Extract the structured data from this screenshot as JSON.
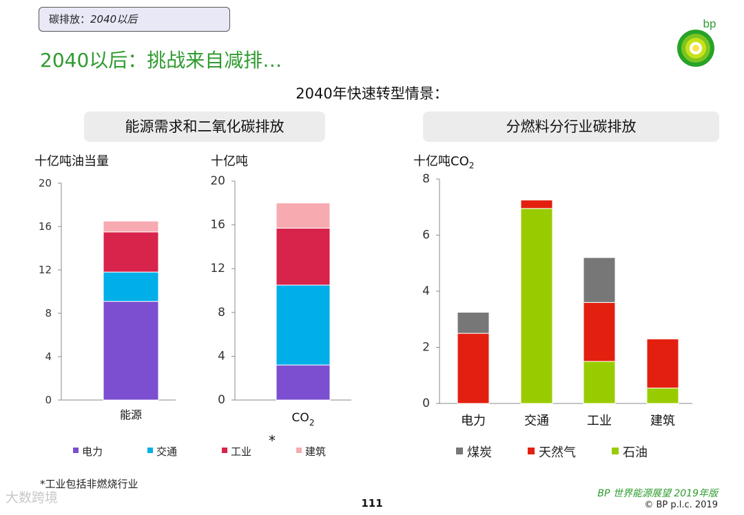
{
  "header": {
    "tag_prefix": "碳排放：",
    "tag_year": "2040以后",
    "headline": "2040以后：挑战来自减排…",
    "logo_text": "bp"
  },
  "scenario_title": "2040年快速转型情景：",
  "panels": {
    "left_title": "能源需求和二氧化碳排放",
    "right_title": "分燃料分行业碳排放"
  },
  "units": {
    "energy": "十亿吨油当量",
    "co2": "十亿吨",
    "sector_prefix": "十亿吨CO",
    "sector_sub": "2"
  },
  "colors": {
    "power": "#7b4fcf",
    "transport": "#00aee8",
    "industry": "#d8234a",
    "buildings": "#f7aab0",
    "coal": "#777777",
    "gas": "#e3200f",
    "oil": "#99cc00"
  },
  "chart_data": [
    {
      "type": "bar",
      "stacked": true,
      "categories": [
        "能源"
      ],
      "series": [
        {
          "name": "电力",
          "values": [
            9.1
          ]
        },
        {
          "name": "交通",
          "values": [
            2.7
          ]
        },
        {
          "name": "工业",
          "values": [
            3.7
          ]
        },
        {
          "name": "建筑",
          "values": [
            1.0
          ]
        }
      ],
      "ylim": [
        0,
        20
      ],
      "yticks": [
        0,
        4,
        8,
        12,
        16,
        20
      ],
      "ylabel": "十亿吨油当量"
    },
    {
      "type": "bar",
      "stacked": true,
      "categories": [
        "CO₂"
      ],
      "series": [
        {
          "name": "电力",
          "values": [
            3.2
          ]
        },
        {
          "name": "交通",
          "values": [
            7.3
          ]
        },
        {
          "name": "工业",
          "values": [
            5.2
          ]
        },
        {
          "name": "建筑",
          "values": [
            2.3
          ]
        }
      ],
      "ylim": [
        0,
        20
      ],
      "yticks": [
        0,
        4,
        8,
        12,
        16,
        20
      ],
      "ylabel": "十亿吨"
    },
    {
      "type": "bar",
      "stacked": true,
      "categories": [
        "电力",
        "交通",
        "工业",
        "建筑"
      ],
      "series": [
        {
          "name": "石油",
          "values": [
            0.0,
            6.95,
            1.5,
            0.55
          ]
        },
        {
          "name": "天然气",
          "values": [
            2.5,
            0.3,
            2.1,
            1.75
          ]
        },
        {
          "name": "煤炭",
          "values": [
            0.75,
            0.0,
            1.6,
            0.0
          ]
        }
      ],
      "ylim": [
        0,
        8
      ],
      "yticks": [
        0,
        2,
        4,
        6,
        8
      ],
      "ylabel": "十亿吨CO₂"
    }
  ],
  "legend_left": [
    "电力",
    "交通",
    "工业",
    "建筑"
  ],
  "legend_right": [
    "煤炭",
    "天然气",
    "石油"
  ],
  "asterisk": "*",
  "footnote": "*工业包括非燃烧行业",
  "page_number": "111",
  "source": "BP 世界能源展望 2019年版",
  "copyright": "© BP p.l.c. 2019",
  "watermark": "大数跨境"
}
